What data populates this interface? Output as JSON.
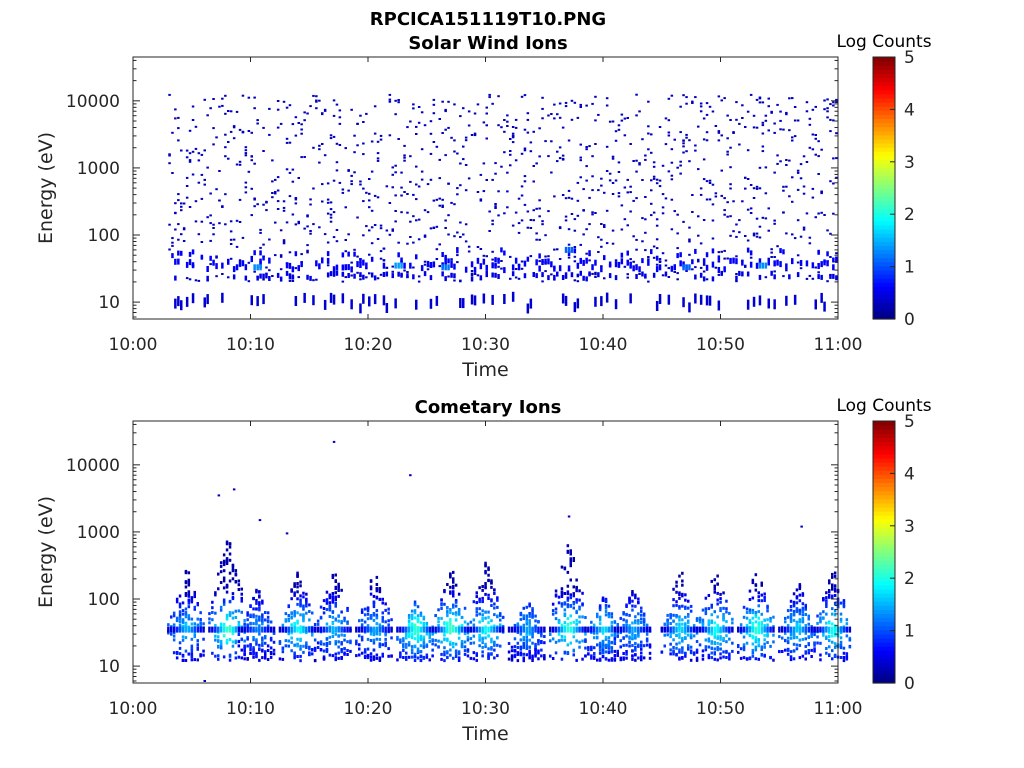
{
  "figure_title": "RPCICA151119T10.PNG",
  "colorbar_label": "Log Counts",
  "colorbar_ticks": [
    "0",
    "1",
    "2",
    "3",
    "4",
    "5"
  ],
  "chart_data": [
    {
      "type": "heatmap",
      "title": "Solar Wind Ions",
      "xlabel": "Time",
      "ylabel": "Energy (eV)",
      "x_ticks": [
        "10:00",
        "10:10",
        "10:20",
        "10:30",
        "10:40",
        "10:50",
        "11:00"
      ],
      "y_ticks": [
        "10",
        "100",
        "1000",
        "10000"
      ],
      "y_scale": "log",
      "colorbar": {
        "label": "Log Counts",
        "range": [
          0,
          5
        ],
        "colormap": "jet"
      },
      "bands": [
        {
          "t_start_min": 3,
          "t_end_min": 60,
          "energy_eV": 33,
          "log_counts": 0.5
        },
        {
          "t_start_min": 3,
          "t_end_min": 60,
          "energy_eV": 10,
          "log_counts": 0.2
        }
      ],
      "pixels": [
        {
          "t_min": 10.5,
          "energy_eV": 33,
          "log_counts": 1.3
        },
        {
          "t_min": 22.5,
          "energy_eV": 35,
          "log_counts": 1.4
        },
        {
          "t_min": 26.5,
          "energy_eV": 33,
          "log_counts": 1.2
        },
        {
          "t_min": 37.0,
          "energy_eV": 60,
          "log_counts": 1.1
        },
        {
          "t_min": 53.5,
          "energy_eV": 35,
          "log_counts": 1.3
        },
        {
          "t_min": 47.0,
          "energy_eV": 33,
          "log_counts": 1.1
        }
      ]
    },
    {
      "type": "heatmap",
      "title": "Cometary Ions",
      "xlabel": "Time",
      "ylabel": "Energy (eV)",
      "x_ticks": [
        "10:00",
        "10:10",
        "10:20",
        "10:30",
        "10:40",
        "10:50",
        "11:00"
      ],
      "y_ticks": [
        "10",
        "100",
        "1000",
        "10000"
      ],
      "y_scale": "log",
      "colorbar": {
        "label": "Log Counts",
        "range": [
          0,
          5
        ],
        "colormap": "jet"
      },
      "clusters": [
        {
          "t_min": 4.5,
          "e_max_eV": 300,
          "peak_log_counts": 1.6
        },
        {
          "t_min": 8.0,
          "e_max_eV": 1000,
          "peak_log_counts": 2.3
        },
        {
          "t_min": 10.5,
          "e_max_eV": 150,
          "peak_log_counts": 1.3
        },
        {
          "t_min": 14.0,
          "e_max_eV": 300,
          "peak_log_counts": 2.0
        },
        {
          "t_min": 17.0,
          "e_max_eV": 300,
          "peak_log_counts": 1.6
        },
        {
          "t_min": 20.5,
          "e_max_eV": 300,
          "peak_log_counts": 1.5
        },
        {
          "t_min": 24.0,
          "e_max_eV": 100,
          "peak_log_counts": 2.2
        },
        {
          "t_min": 27.0,
          "e_max_eV": 300,
          "peak_log_counts": 2.3
        },
        {
          "t_min": 30.0,
          "e_max_eV": 400,
          "peak_log_counts": 2.0
        },
        {
          "t_min": 33.5,
          "e_max_eV": 100,
          "peak_log_counts": 1.5
        },
        {
          "t_min": 37.0,
          "e_max_eV": 800,
          "peak_log_counts": 2.2
        },
        {
          "t_min": 40.0,
          "e_max_eV": 120,
          "peak_log_counts": 1.8
        },
        {
          "t_min": 42.5,
          "e_max_eV": 150,
          "peak_log_counts": 1.5
        },
        {
          "t_min": 46.5,
          "e_max_eV": 300,
          "peak_log_counts": 1.8
        },
        {
          "t_min": 49.5,
          "e_max_eV": 300,
          "peak_log_counts": 2.0
        },
        {
          "t_min": 53.0,
          "e_max_eV": 300,
          "peak_log_counts": 2.2
        },
        {
          "t_min": 56.5,
          "e_max_eV": 200,
          "peak_log_counts": 1.7
        },
        {
          "t_min": 59.5,
          "e_max_eV": 300,
          "peak_log_counts": 2.0
        }
      ],
      "outliers": [
        {
          "t_min": 7.2,
          "energy_eV": 3500
        },
        {
          "t_min": 8.5,
          "energy_eV": 4300
        },
        {
          "t_min": 17.0,
          "energy_eV": 22000
        },
        {
          "t_min": 23.5,
          "energy_eV": 7000
        },
        {
          "t_min": 10.7,
          "energy_eV": 1500
        },
        {
          "t_min": 13.0,
          "energy_eV": 950
        },
        {
          "t_min": 37.0,
          "energy_eV": 1700
        },
        {
          "t_min": 56.8,
          "energy_eV": 1200
        },
        {
          "t_min": 6.0,
          "energy_eV": 6
        }
      ]
    }
  ]
}
